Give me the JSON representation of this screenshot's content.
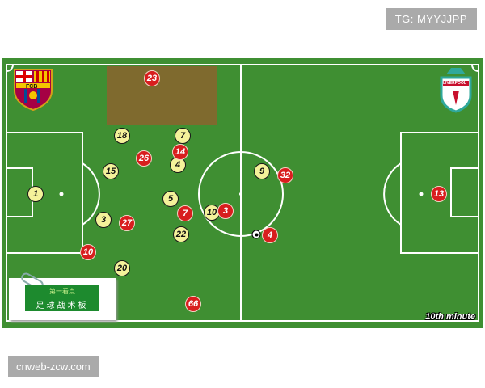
{
  "watermark_tag": "TG: MYYJJPP",
  "site_label": "cnweb-zcw.com",
  "colors": {
    "pitch": "#3f8f32",
    "home": "#f4f29a",
    "away": "#d81e1e",
    "zone": "#7f6a2e"
  },
  "home_team": {
    "name_logo": "FCB",
    "logo": "barcelona-crest"
  },
  "away_team": {
    "name_logo": "LIVERPOOL",
    "logo": "liverpool-crest"
  },
  "minute_label": "10th minute",
  "note": {
    "line1": "第一看点",
    "line2": "足球战术板"
  },
  "home_players": [
    "1",
    "18",
    "7",
    "4",
    "15",
    "5",
    "3",
    "10",
    "22",
    "20",
    "9"
  ],
  "away_players": [
    "23",
    "26",
    "14",
    "7",
    "27",
    "3",
    "10",
    "66",
    "32",
    "4",
    "13"
  ]
}
